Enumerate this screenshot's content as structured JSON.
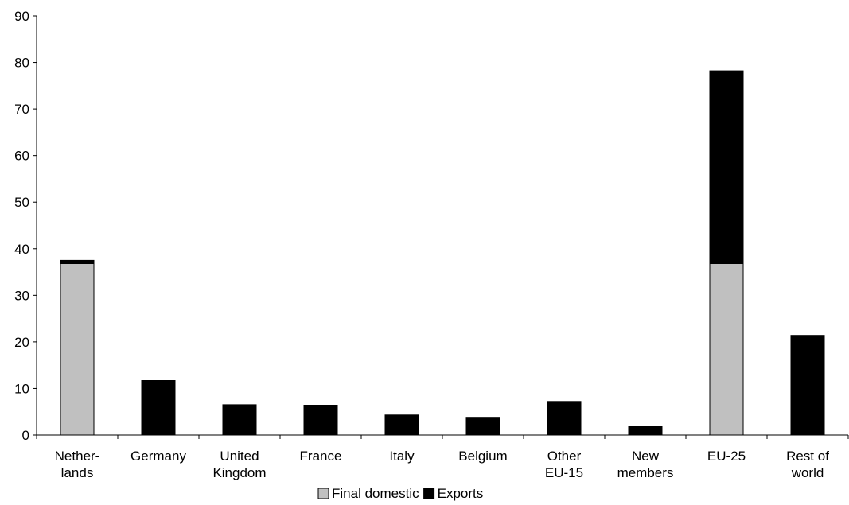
{
  "chart_data": {
    "type": "bar",
    "stacked": true,
    "title": "",
    "xlabel": "",
    "ylabel": "",
    "ylim": [
      0,
      90
    ],
    "yticks": [
      0,
      10,
      20,
      30,
      40,
      50,
      60,
      70,
      80,
      90
    ],
    "grid": false,
    "legend_position": "bottom",
    "categories": [
      [
        "Nether-",
        "lands"
      ],
      [
        "Germany"
      ],
      [
        "United",
        "Kingdom"
      ],
      [
        "France"
      ],
      [
        "Italy"
      ],
      [
        "Belgium"
      ],
      [
        "Other",
        "EU-15"
      ],
      [
        "New",
        "members"
      ],
      [
        "EU-25"
      ],
      [
        "Rest of",
        "world"
      ]
    ],
    "series": [
      {
        "name": "Final domestic",
        "color": "#c0c0c0",
        "values": [
          36.8,
          0,
          0,
          0,
          0,
          0,
          0,
          0,
          36.8,
          0
        ]
      },
      {
        "name": "Exports",
        "color": "#000000",
        "values": [
          0.7,
          11.7,
          6.5,
          6.4,
          4.3,
          3.8,
          7.2,
          1.8,
          41.4,
          21.4
        ]
      }
    ]
  }
}
